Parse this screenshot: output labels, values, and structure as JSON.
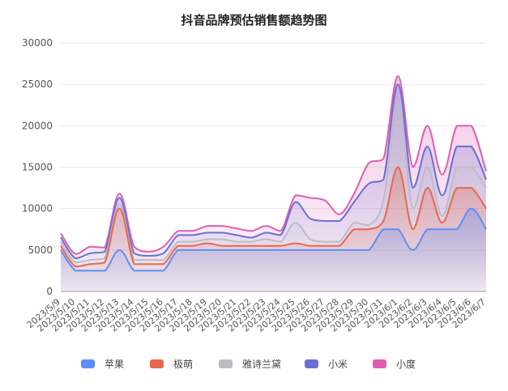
{
  "chart_data": {
    "type": "area",
    "stacked": true,
    "title": "抖音品牌预估销售额趋势图",
    "xlabel": "",
    "ylabel": "",
    "ylim": [
      0,
      30000
    ],
    "yticks": [
      0,
      5000,
      10000,
      15000,
      20000,
      25000,
      30000
    ],
    "grid": true,
    "legend_position": "bottom",
    "x": [
      "2023/5/9",
      "2023/5/10",
      "2023/5/11",
      "2023/5/12",
      "2023/5/13",
      "2023/5/14",
      "2023/5/15",
      "2023/5/16",
      "2023/5/17",
      "2023/5/18",
      "2023/5/19",
      "2023/5/20",
      "2023/5/21",
      "2023/5/22",
      "2023/5/23",
      "2023/5/24",
      "2023/5/25",
      "2023/5/26",
      "2023/5/27",
      "2023/5/28",
      "2023/5/29",
      "2023/5/30",
      "2023/5/31",
      "2023/6/1",
      "2023/6/2",
      "2023/6/3",
      "2023/6/4",
      "2023/6/5",
      "2023/6/6",
      "2023/6/7"
    ],
    "series": [
      {
        "name": "苹果",
        "color": "#5b8ff9",
        "values": [
          5000,
          2500,
          2500,
          2500,
          5000,
          2500,
          2500,
          2500,
          5000,
          5000,
          5000,
          5000,
          5000,
          5000,
          5000,
          5000,
          5000,
          5000,
          5000,
          5000,
          5000,
          5000,
          7500,
          7500,
          5000,
          7500,
          7500,
          7500,
          10000,
          7500
        ]
      },
      {
        "name": "极萌",
        "color": "#e8684a",
        "values": [
          500,
          500,
          800,
          1000,
          5000,
          800,
          800,
          800,
          500,
          500,
          800,
          500,
          500,
          500,
          500,
          500,
          800,
          500,
          500,
          500,
          2500,
          2500,
          1000,
          7500,
          2500,
          5000,
          800,
          5000,
          2500,
          2500
        ]
      },
      {
        "name": "雅诗兰黛",
        "color": "#bbbdc2",
        "values": [
          500,
          500,
          500,
          500,
          500,
          500,
          500,
          500,
          500,
          500,
          500,
          800,
          500,
          500,
          800,
          500,
          2500,
          800,
          500,
          500,
          800,
          500,
          2500,
          7500,
          2500,
          2500,
          800,
          2500,
          2500,
          2500
        ]
      },
      {
        "name": "小米",
        "color": "#6a6fd6",
        "values": [
          500,
          500,
          800,
          800,
          800,
          800,
          500,
          800,
          800,
          800,
          800,
          800,
          800,
          500,
          800,
          800,
          2500,
          2500,
          2500,
          2500,
          2500,
          5000,
          2500,
          2500,
          2500,
          2500,
          2500,
          2500,
          2500,
          1000
        ]
      },
      {
        "name": "小度",
        "color": "#e15db0",
        "values": [
          500,
          500,
          800,
          500,
          500,
          800,
          500,
          800,
          500,
          500,
          800,
          800,
          800,
          800,
          800,
          500,
          800,
          2500,
          2500,
          800,
          1000,
          2500,
          2500,
          1000,
          2500,
          2500,
          2500,
          2500,
          2500,
          1000
        ]
      }
    ]
  }
}
